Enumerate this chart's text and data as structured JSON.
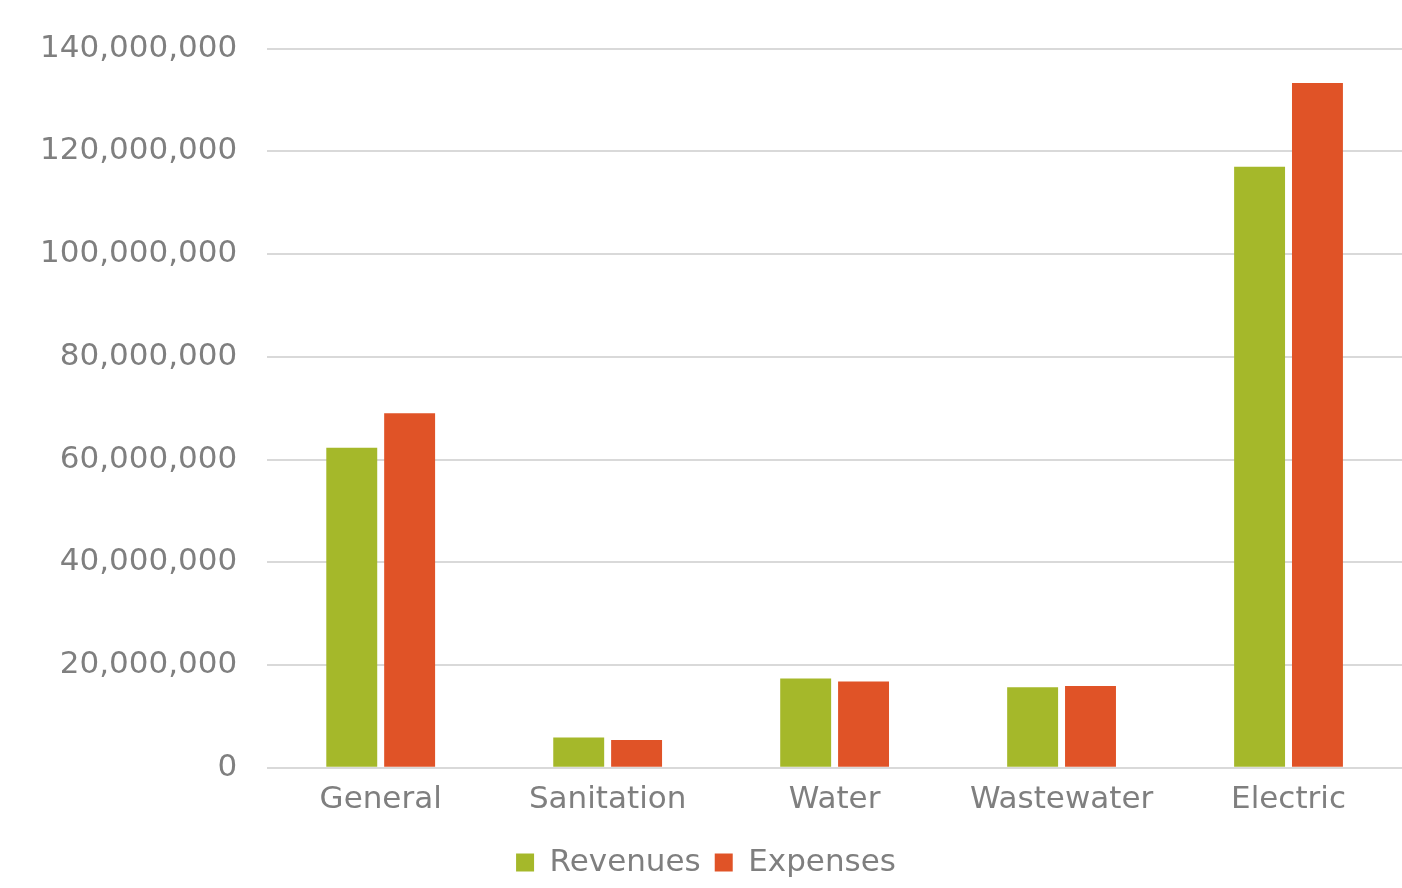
{
  "chart_data": {
    "type": "bar",
    "categories": [
      "General",
      "Sanitation",
      "Water",
      "Wastewater",
      "Electric"
    ],
    "series": [
      {
        "name": "Revenues",
        "color": "#a5b82a",
        "values": [
          62300000,
          5900000,
          17400000,
          15700000,
          117000000
        ]
      },
      {
        "name": "Expenses",
        "color": "#e05327",
        "values": [
          69000000,
          5400000,
          16800000,
          15900000,
          133300000
        ]
      }
    ],
    "ylim": [
      0,
      140000000
    ],
    "yticks": [
      {
        "value": 0,
        "label": "0"
      },
      {
        "value": 20000000,
        "label": "20,000,000"
      },
      {
        "value": 40000000,
        "label": "40,000,000"
      },
      {
        "value": 60000000,
        "label": "60,000,000"
      },
      {
        "value": 80000000,
        "label": "80,000,000"
      },
      {
        "value": 100000000,
        "label": "100,000,000"
      },
      {
        "value": 120000000,
        "label": "120,000,000"
      },
      {
        "value": 140000000,
        "label": "140,000,000"
      }
    ],
    "grid": "y",
    "legend": "bottom"
  }
}
